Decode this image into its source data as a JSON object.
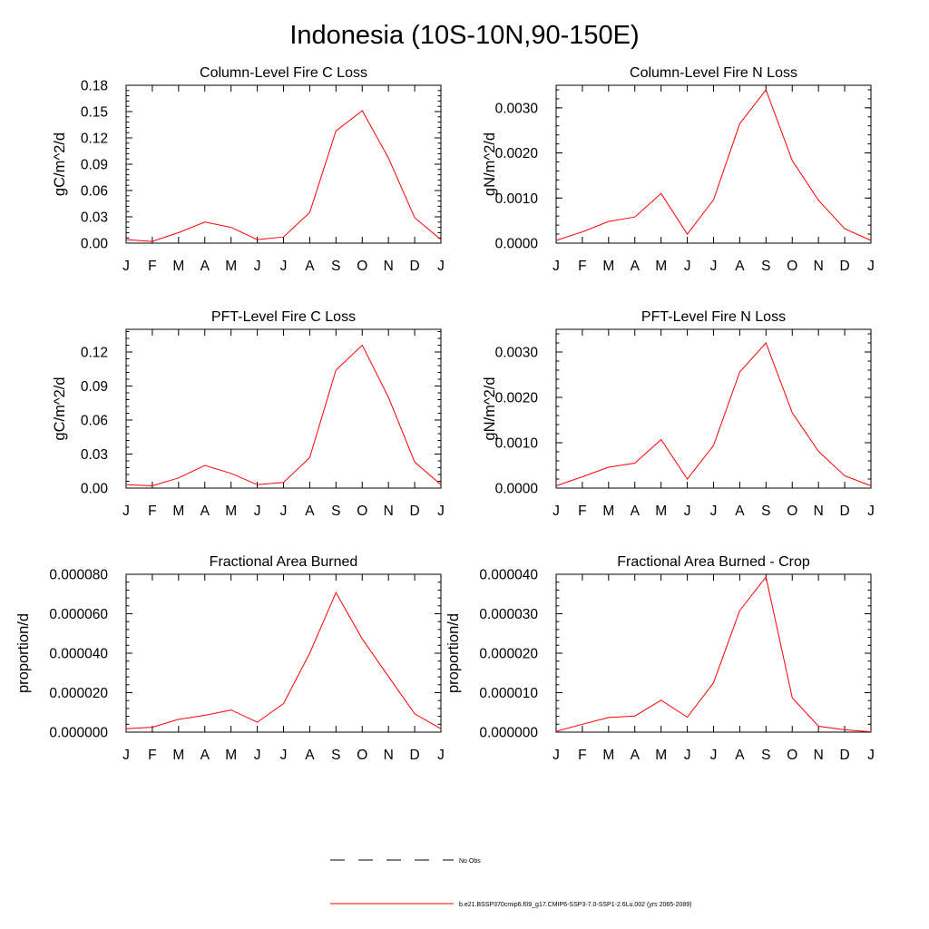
{
  "page": {
    "title": "Indonesia (10S-10N,90-150E)"
  },
  "months": [
    "J",
    "F",
    "M",
    "A",
    "M",
    "J",
    "J",
    "A",
    "S",
    "O",
    "N",
    "D",
    "J"
  ],
  "series_colors": {
    "model": "#ff0000",
    "obs": "#000000",
    "axis": "#000000"
  },
  "legend": {
    "obs_label": "No Obs",
    "model_label": "b.e21.BSSP370cmip6.f09_g17.CMIP6-SSP3-7.0-SSP1-2.6Lu.002 (yrs 2065-2089)"
  },
  "chart_data": [
    {
      "type": "line",
      "title": "Column-Level Fire C Loss",
      "ylabel": "gC/m^2/d",
      "ylim": [
        0,
        0.18
      ],
      "yticks": [
        "0.00",
        "0.03",
        "0.06",
        "0.09",
        "0.12",
        "0.15",
        "0.18"
      ],
      "series": [
        {
          "name": "b.e21.BSSP370cmip6.f09_g17.CMIP6-SSP3-7.0-SSP1-2.6Lu.002 (yrs 2065-2089)",
          "values": [
            0.004,
            0.002,
            0.012,
            0.024,
            0.018,
            0.004,
            0.007,
            0.035,
            0.128,
            0.151,
            0.097,
            0.029,
            0.004
          ]
        }
      ]
    },
    {
      "type": "line",
      "title": "Column-Level Fire N Loss",
      "ylabel": "gN/m^2/d",
      "ylim": [
        0,
        0.0035
      ],
      "yticks": [
        "0.0000",
        "0.0010",
        "0.0020",
        "0.0030"
      ],
      "series": [
        {
          "name": "b.e21.BSSP370cmip6.f09_g17.CMIP6-SSP3-7.0-SSP1-2.6Lu.002 (yrs 2065-2089)",
          "values": [
            6e-05,
            0.00025,
            0.00048,
            0.00058,
            0.0011,
            0.0002,
            0.00096,
            0.00265,
            0.0034,
            0.00183,
            0.00095,
            0.00032,
            6e-05
          ]
        }
      ]
    },
    {
      "type": "line",
      "title": "PFT-Level Fire C Loss",
      "ylabel": "gC/m^2/d",
      "ylim": [
        0,
        0.14
      ],
      "yticks": [
        "0.00",
        "0.03",
        "0.06",
        "0.09",
        "0.12"
      ],
      "series": [
        {
          "name": "b.e21.BSSP370cmip6.f09_g17.CMIP6-SSP3-7.0-SSP1-2.6Lu.002 (yrs 2065-2089)",
          "values": [
            0.003,
            0.002,
            0.009,
            0.02,
            0.013,
            0.003,
            0.005,
            0.027,
            0.104,
            0.126,
            0.08,
            0.023,
            0.003
          ]
        }
      ]
    },
    {
      "type": "line",
      "title": "PFT-Level Fire N Loss",
      "ylabel": "gN/m^2/d",
      "ylim": [
        0,
        0.0035
      ],
      "yticks": [
        "0.0000",
        "0.0010",
        "0.0020",
        "0.0030"
      ],
      "series": [
        {
          "name": "b.e21.BSSP370cmip6.f09_g17.CMIP6-SSP3-7.0-SSP1-2.6Lu.002 (yrs 2065-2089)",
          "values": [
            5e-05,
            0.00025,
            0.00046,
            0.00055,
            0.00107,
            0.0002,
            0.00094,
            0.00256,
            0.0032,
            0.00166,
            0.00081,
            0.00027,
            5e-05
          ]
        }
      ]
    },
    {
      "type": "line",
      "title": "Fractional Area Burned",
      "ylabel": "proportion/d",
      "ylim": [
        0,
        8e-05
      ],
      "yticks": [
        "0.000000",
        "0.000020",
        "0.000040",
        "0.000060",
        "0.000080"
      ],
      "series": [
        {
          "name": "b.e21.BSSP370cmip6.f09_g17.CMIP6-SSP3-7.0-SSP1-2.6Lu.002 (yrs 2065-2089)",
          "values": [
            1.7e-06,
            2.5e-06,
            6.5e-06,
            8.5e-06,
            1.12e-05,
            5e-06,
            1.45e-05,
            4e-05,
            7.07e-05,
            4.72e-05,
            2.82e-05,
            9.3e-06,
            1.7e-06
          ]
        }
      ]
    },
    {
      "type": "line",
      "title": "Fractional Area Burned - Crop",
      "ylabel": "proportion/d",
      "ylim": [
        0,
        4e-05
      ],
      "yticks": [
        "0.000000",
        "0.000010",
        "0.000020",
        "0.000030",
        "0.000040"
      ],
      "series": [
        {
          "name": "b.e21.BSSP370cmip6.f09_g17.CMIP6-SSP3-7.0-SSP1-2.6Lu.002 (yrs 2065-2089)",
          "values": [
            2e-07,
            2e-06,
            3.7e-06,
            4.1e-06,
            8.1e-06,
            3.8e-06,
            1.25e-05,
            3.08e-05,
            3.93e-05,
            8.7e-06,
            1.5e-06,
            6e-07,
            1e-07
          ]
        }
      ]
    }
  ]
}
